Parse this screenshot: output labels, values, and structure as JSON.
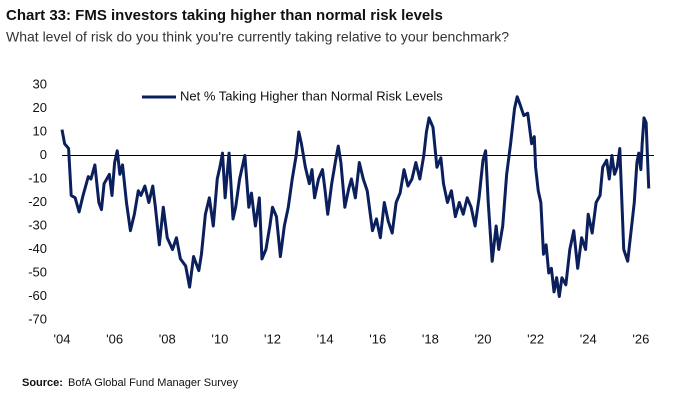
{
  "chart_data": {
    "type": "line",
    "title": "Chart 33: FMS investors taking higher than normal risk levels",
    "subtitle": "What level of risk do you think you're currently taking relative to your benchmark?",
    "source_label": "Source:",
    "source": "BofA Global Fund Manager Survey",
    "legend": "upper left",
    "xlim": [
      2004,
      2026.5
    ],
    "ylim": [
      -70,
      30
    ],
    "yticks": [
      -70,
      -60,
      -50,
      -40,
      -30,
      -20,
      -10,
      0,
      10,
      20,
      30
    ],
    "xticks": [
      {
        "value": 2004,
        "label": "'04"
      },
      {
        "value": 2006,
        "label": "'06"
      },
      {
        "value": 2008,
        "label": "'08"
      },
      {
        "value": 2010,
        "label": "'10"
      },
      {
        "value": 2012,
        "label": "'12"
      },
      {
        "value": 2014,
        "label": "'14"
      },
      {
        "value": 2016,
        "label": "'16"
      },
      {
        "value": 2018,
        "label": "'18"
      },
      {
        "value": 2020,
        "label": "'20"
      },
      {
        "value": 2022,
        "label": "'22"
      },
      {
        "value": 2024,
        "label": "'24"
      },
      {
        "value": 2026,
        "label": "'26"
      }
    ],
    "x": [
      2004.0,
      2004.1,
      2004.25,
      2004.35,
      2004.5,
      2004.65,
      2004.8,
      2005.0,
      2005.1,
      2005.25,
      2005.4,
      2005.5,
      2005.6,
      2005.8,
      2005.9,
      2006.0,
      2006.1,
      2006.2,
      2006.3,
      2006.45,
      2006.6,
      2006.75,
      2006.9,
      2007.0,
      2007.15,
      2007.3,
      2007.45,
      2007.55,
      2007.7,
      2007.85,
      2008.0,
      2008.2,
      2008.35,
      2008.5,
      2008.7,
      2008.85,
      2009.0,
      2009.2,
      2009.3,
      2009.45,
      2009.6,
      2009.75,
      2009.9,
      2010.0,
      2010.1,
      2010.2,
      2010.3,
      2010.35,
      2010.5,
      2010.6,
      2010.75,
      2010.85,
      2010.95,
      2011.1,
      2011.2,
      2011.35,
      2011.5,
      2011.6,
      2011.75,
      2011.9,
      2012.0,
      2012.15,
      2012.3,
      2012.45,
      2012.6,
      2012.75,
      2012.9,
      2013.0,
      2013.1,
      2013.25,
      2013.4,
      2013.5,
      2013.6,
      2013.75,
      2013.9,
      2014.0,
      2014.1,
      2014.25,
      2014.4,
      2014.5,
      2014.6,
      2014.75,
      2014.9,
      2015.0,
      2015.15,
      2015.3,
      2015.45,
      2015.6,
      2015.8,
      2015.95,
      2016.1,
      2016.25,
      2016.4,
      2016.55,
      2016.7,
      2016.85,
      2017.0,
      2017.15,
      2017.3,
      2017.45,
      2017.6,
      2017.75,
      2017.85,
      2017.95,
      2018.1,
      2018.25,
      2018.4,
      2018.5,
      2018.65,
      2018.8,
      2018.95,
      2019.1,
      2019.25,
      2019.4,
      2019.55,
      2019.7,
      2019.85,
      2020.0,
      2020.1,
      2020.2,
      2020.35,
      2020.5,
      2020.6,
      2020.75,
      2020.9,
      2021.05,
      2021.2,
      2021.3,
      2021.4,
      2021.55,
      2021.7,
      2021.85,
      2021.95,
      2022.0,
      2022.1,
      2022.2,
      2022.3,
      2022.4,
      2022.5,
      2022.6,
      2022.7,
      2022.8,
      2022.9,
      2023.0,
      2023.15,
      2023.3,
      2023.45,
      2023.6,
      2023.75,
      2023.9,
      2024.0,
      2024.15,
      2024.3,
      2024.45,
      2024.55,
      2024.7,
      2024.8,
      2024.9,
      2025.0,
      2025.1,
      2025.2,
      2025.35,
      2025.5,
      2025.65,
      2025.75,
      2025.85,
      2025.92,
      2026.0,
      2026.05,
      2026.12,
      2026.2,
      2026.3
    ],
    "series": [
      {
        "name": "Net % Taking Higher than Normal Risk Levels",
        "color": "#0b1f5c",
        "values": [
          11,
          5,
          3,
          -17,
          -18,
          -24,
          -17,
          -9,
          -10,
          -4,
          -20,
          -23,
          -12,
          -8,
          -17,
          -3,
          2,
          -8,
          -4,
          -20,
          -32,
          -25,
          -15,
          -17,
          -13,
          -20,
          -13,
          -22,
          -38,
          -22,
          -35,
          -40,
          -35,
          -44,
          -47,
          -56,
          -43,
          -49,
          -42,
          -25,
          -18,
          -30,
          -10,
          -5,
          1,
          -18,
          -5,
          1,
          -27,
          -22,
          -10,
          -5,
          0,
          -22,
          -16,
          -30,
          -18,
          -44,
          -40,
          -30,
          -22,
          -26,
          -43,
          -30,
          -22,
          -10,
          0,
          10,
          5,
          -5,
          -12,
          -6,
          -18,
          -10,
          -6,
          -15,
          -25,
          -12,
          -2,
          4,
          -3,
          -22,
          -14,
          -10,
          -18,
          -3,
          -10,
          -15,
          -32,
          -27,
          -35,
          -20,
          -28,
          -33,
          -20,
          -16,
          -6,
          -13,
          -10,
          -3,
          -10,
          0,
          10,
          16,
          12,
          -5,
          -1,
          -12,
          -20,
          -15,
          -26,
          -20,
          -25,
          -18,
          -22,
          -30,
          -18,
          -2,
          2,
          -20,
          -45,
          -30,
          -40,
          -30,
          -8,
          5,
          20,
          25,
          22,
          17,
          18,
          5,
          8,
          -5,
          -15,
          -20,
          -42,
          -38,
          -50,
          -48,
          -58,
          -52,
          -60,
          -52,
          -55,
          -40,
          -32,
          -48,
          -35,
          -40,
          -25,
          -33,
          -20,
          -17,
          -5,
          -2,
          -10,
          0,
          -8,
          -5,
          3,
          -40,
          -45,
          -30,
          -20,
          -3,
          1,
          -6,
          5,
          16,
          14,
          -14
        ]
      }
    ]
  }
}
